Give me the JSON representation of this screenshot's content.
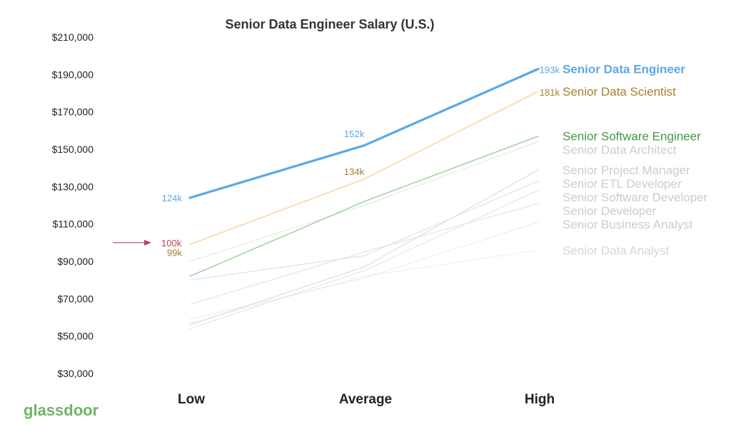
{
  "brand": {
    "logo_text": "glassdoor",
    "color": "#6fb564"
  },
  "chart_data": {
    "type": "line",
    "title": "Senior Data Engineer Salary (U.S.)",
    "categories": [
      "Low",
      "Average",
      "High"
    ],
    "ylim": [
      30000,
      210000
    ],
    "yticks": [
      {
        "value": 210000,
        "label": "$210,000"
      },
      {
        "value": 190000,
        "label": "$190,000"
      },
      {
        "value": 170000,
        "label": "$170,000"
      },
      {
        "value": 150000,
        "label": "$150,000"
      },
      {
        "value": 130000,
        "label": "$130,000"
      },
      {
        "value": 110000,
        "label": "$110,000"
      },
      {
        "value": 90000,
        "label": "$90,000"
      },
      {
        "value": 70000,
        "label": "$70,000"
      },
      {
        "value": 50000,
        "label": "$50,000"
      },
      {
        "value": 30000,
        "label": "$30,000"
      }
    ],
    "grid": false,
    "legend": "right, labels at line ends",
    "series": [
      {
        "name": "Senior Data Analyst",
        "values": [
          57000,
          82000,
          96000
        ],
        "color": "#f1f1f1",
        "text_color": "#d6d6d6",
        "width": 1.2,
        "bold": false
      },
      {
        "name": "Senior Business Analyst",
        "values": [
          59000,
          81000,
          111000
        ],
        "color": "#eeeeee",
        "text_color": "#cccccc",
        "width": 1.2,
        "bold": false
      },
      {
        "name": "Senior Software Developer",
        "values": [
          54000,
          85000,
          128000
        ],
        "color": "#e6e6e6",
        "text_color": "#cccccc",
        "width": 1.2,
        "bold": false
      },
      {
        "name": "Senior Developer",
        "values": [
          67000,
          95000,
          121000
        ],
        "color": "#d6e7f3",
        "text_color": "#cccccc",
        "width": 1.2,
        "bold": false
      },
      {
        "name": "Senior Project Manager",
        "values": [
          56000,
          87000,
          139000
        ],
        "color": "#dddddd",
        "text_color": "#cccccc",
        "width": 1.2,
        "bold": false
      },
      {
        "name": "Senior ETL Developer",
        "values": [
          80000,
          93000,
          133000
        ],
        "color": "#d4e5f2",
        "text_color": "#cccccc",
        "width": 1.2,
        "bold": false
      },
      {
        "name": "Senior Data Architect",
        "values": [
          90000,
          120000,
          154000
        ],
        "color": "#e9e9e9",
        "text_color": "#cccccc",
        "width": 1.2,
        "bold": false
      },
      {
        "name": "Senior Software Engineer",
        "values": [
          82000,
          122000,
          157000
        ],
        "color": "#a6d4a2",
        "text_color": "#3f9a3f",
        "width": 1.6,
        "bold": false
      },
      {
        "name": "Senior Data Scientist",
        "values": [
          99000,
          134000,
          181000
        ],
        "color": "#f6d9a3",
        "text_color": "#a6802d",
        "width": 1.6,
        "bold": false,
        "point_labels": [
          "99k",
          "134k",
          "181k"
        ]
      },
      {
        "name": "Senior Data Engineer",
        "values": [
          124000,
          152000,
          193000
        ],
        "color": "#5aa8e6",
        "text_color": "#5aa8e6",
        "width": 3.2,
        "bold": true,
        "point_labels": [
          "124k",
          "152k",
          "193k"
        ]
      }
    ],
    "annotation": {
      "text": "100k",
      "value": 100000,
      "color": "#c0405a"
    }
  }
}
